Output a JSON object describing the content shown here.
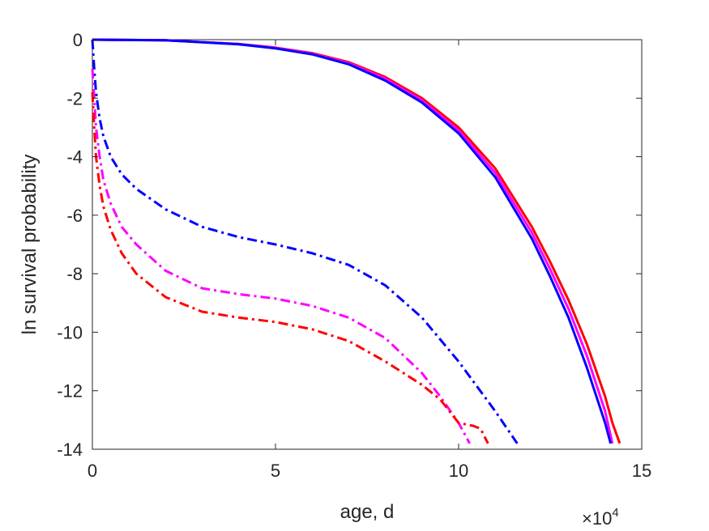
{
  "chart_data": {
    "type": "line",
    "title": "",
    "xlabel": "age, d",
    "ylabel": "ln survival probability",
    "x_exponent": {
      "base": "×10",
      "power": "4"
    },
    "xlim": [
      0,
      15
    ],
    "ylim": [
      -14,
      0
    ],
    "xticks": [
      "0",
      "5",
      "10",
      "15"
    ],
    "yticks": [
      "0",
      "-2",
      "-4",
      "-6",
      "-8",
      "-10",
      "-12",
      "-14"
    ],
    "grid": false,
    "colors": {
      "red": "#ff0000",
      "magenta": "#ff00ff",
      "blue": "#0000ff",
      "axis": "#262626"
    },
    "series": [
      {
        "color": "#ff0000",
        "style": "solid",
        "x": [
          0,
          2,
          4,
          5,
          6,
          7,
          8,
          9,
          10,
          11,
          12,
          12.5,
          13,
          13.5,
          14,
          14.2,
          14.4
        ],
        "y": [
          0,
          -0.02,
          -0.15,
          -0.27,
          -0.46,
          -0.77,
          -1.28,
          -2.0,
          -3.0,
          -4.4,
          -6.4,
          -7.6,
          -8.9,
          -10.4,
          -12.2,
          -13.1,
          -13.8
        ]
      },
      {
        "color": "#ff00ff",
        "style": "solid",
        "x": [
          0,
          2,
          4,
          5,
          6,
          7,
          8,
          9,
          10,
          11,
          12,
          12.5,
          13,
          13.5,
          14,
          14.2
        ],
        "y": [
          0,
          -0.02,
          -0.15,
          -0.28,
          -0.48,
          -0.8,
          -1.33,
          -2.07,
          -3.1,
          -4.55,
          -6.6,
          -7.85,
          -9.2,
          -10.8,
          -12.7,
          -13.8
        ]
      },
      {
        "color": "#0000ff",
        "style": "solid",
        "x": [
          0,
          2,
          4,
          5,
          6,
          7,
          8,
          9,
          10,
          11,
          12,
          12.5,
          13,
          13.5,
          14,
          14.15
        ],
        "y": [
          0,
          -0.02,
          -0.16,
          -0.3,
          -0.5,
          -0.84,
          -1.4,
          -2.15,
          -3.2,
          -4.7,
          -6.8,
          -8.1,
          -9.5,
          -11.2,
          -13.1,
          -13.8
        ]
      },
      {
        "color": "#0000ff",
        "style": "dashdot",
        "x": [
          0,
          0.05,
          0.1,
          0.2,
          0.3,
          0.5,
          0.8,
          1.2,
          2,
          3,
          4,
          5,
          6,
          7,
          8,
          9,
          10,
          11,
          11.6
        ],
        "y": [
          0,
          -1.0,
          -1.8,
          -2.7,
          -3.3,
          -4.0,
          -4.6,
          -5.1,
          -5.8,
          -6.4,
          -6.75,
          -7.0,
          -7.3,
          -7.7,
          -8.4,
          -9.5,
          -11.0,
          -12.7,
          -13.8
        ]
      },
      {
        "color": "#ff00ff",
        "style": "dashdot",
        "x": [
          0,
          0.05,
          0.1,
          0.2,
          0.3,
          0.5,
          0.8,
          1.2,
          2,
          3,
          4,
          5,
          6,
          7,
          8,
          9,
          9.5,
          10,
          10.3
        ],
        "y": [
          -1.0,
          -2.0,
          -3.0,
          -4.0,
          -4.8,
          -5.6,
          -6.4,
          -7.0,
          -7.9,
          -8.5,
          -8.7,
          -8.85,
          -9.1,
          -9.5,
          -10.2,
          -11.4,
          -12.2,
          -13.1,
          -13.8
        ]
      },
      {
        "color": "#ff0000",
        "style": "dashdot",
        "x": [
          0,
          0.05,
          0.1,
          0.2,
          0.3,
          0.5,
          0.8,
          1.2,
          2,
          3,
          4,
          5,
          6,
          7,
          8,
          9,
          9.5,
          10,
          10.4,
          10.6,
          10.8
        ],
        "y": [
          -1.8,
          -3.0,
          -4.0,
          -5.0,
          -5.7,
          -6.5,
          -7.3,
          -8.0,
          -8.8,
          -9.3,
          -9.5,
          -9.65,
          -9.9,
          -10.3,
          -11.0,
          -11.8,
          -12.3,
          -13.1,
          -13.2,
          -13.3,
          -13.8
        ]
      }
    ]
  }
}
